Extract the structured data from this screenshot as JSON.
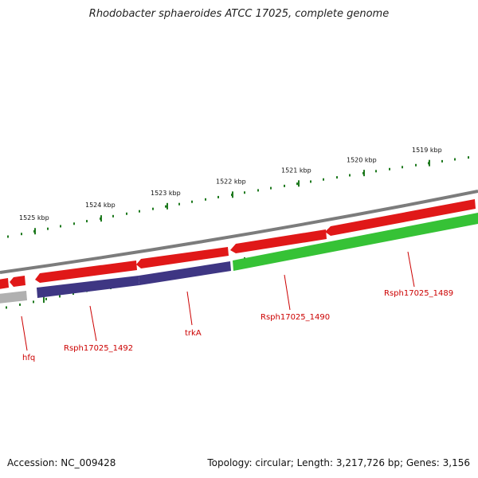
{
  "title": "Rhodobacter sphaeroides ATCC 17025, complete genome",
  "footer": {
    "accession": "Accession: NC_009428",
    "summary": "Topology: circular; Length: 3,217,726 bp; Genes: 3,156"
  },
  "colors": {
    "forward_gene": "#e01818",
    "reverse_gene": "#3e3683",
    "green_gene": "#36c236",
    "grey_gene": "#b0b0b0",
    "backbone": "#7c7c7c",
    "ticks": "#1f7a1f",
    "label": "#cc0000"
  },
  "scale_labels": [
    "1525 kbp",
    "1524 kbp",
    "1523 kbp",
    "1522 kbp",
    "1521 kbp",
    "1520 kbp",
    "1519 kbp"
  ],
  "genes": [
    {
      "name": "hfq"
    },
    {
      "name": "Rsph17025_1492"
    },
    {
      "name": "trkA"
    },
    {
      "name": "Rsph17025_1490"
    },
    {
      "name": "Rsph17025_1489"
    }
  ]
}
